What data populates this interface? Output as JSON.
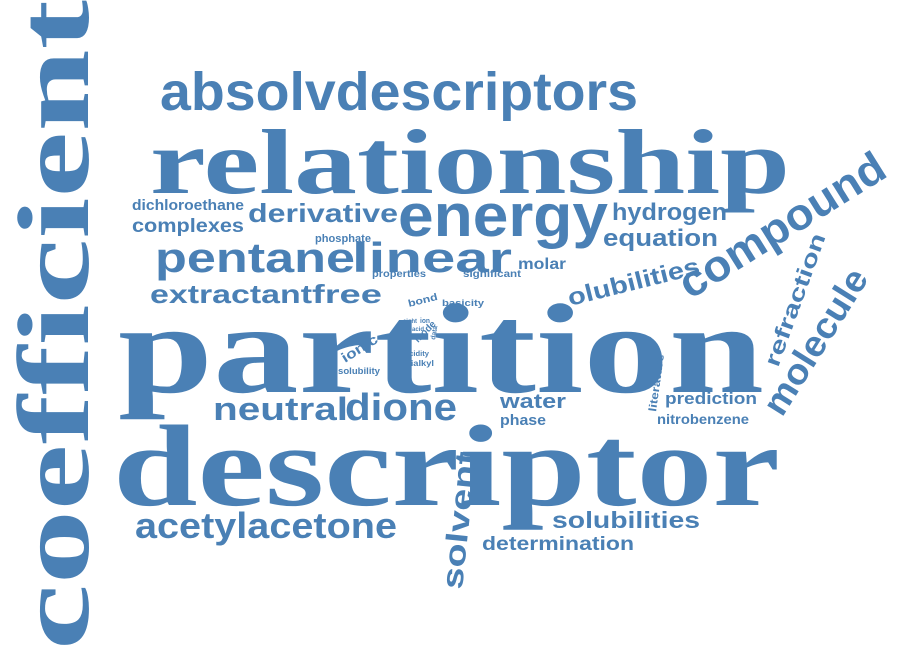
{
  "color": "#4a80b5",
  "words": {
    "coefficient": "coefficient",
    "absolvdescriptors": "absolvdescriptors",
    "relationship": "relationship",
    "energy": "energy",
    "derivative": "derivative",
    "dichloroethane": "dichloroethane",
    "complexes": "complexes",
    "hydrogen": "hydrogen",
    "equation": "equation",
    "compound": "compound",
    "pentane": "pentane",
    "linear": "linear",
    "phosphate": "phosphate",
    "molar": "molar",
    "properties": "properties",
    "significant": "significant",
    "olubilities": "olubilities",
    "extractant": "extractant",
    "free": "free",
    "bond": "bond",
    "basicity": "basicity",
    "eight": "eight",
    "ion": "ion",
    "acid": "acid",
    "mode": "mode",
    "data": "data",
    "ionic": "ionic",
    "acidity": "acidity",
    "trialkyl": "trialkyl",
    "solubility": "solubility",
    "partition": "partition",
    "refraction": "refraction",
    "molecule": "molecule",
    "literature": "literature",
    "prediction": "prediction",
    "nitrobenzene": "nitrobenzene",
    "neutral": "neutral",
    "dione": "dione",
    "water": "water",
    "phase": "phase",
    "descriptor": "descriptor",
    "acetylacetone": "acetylacetone",
    "solvent": "solvent",
    "solubilities": "solubilities",
    "determination": "determination"
  }
}
